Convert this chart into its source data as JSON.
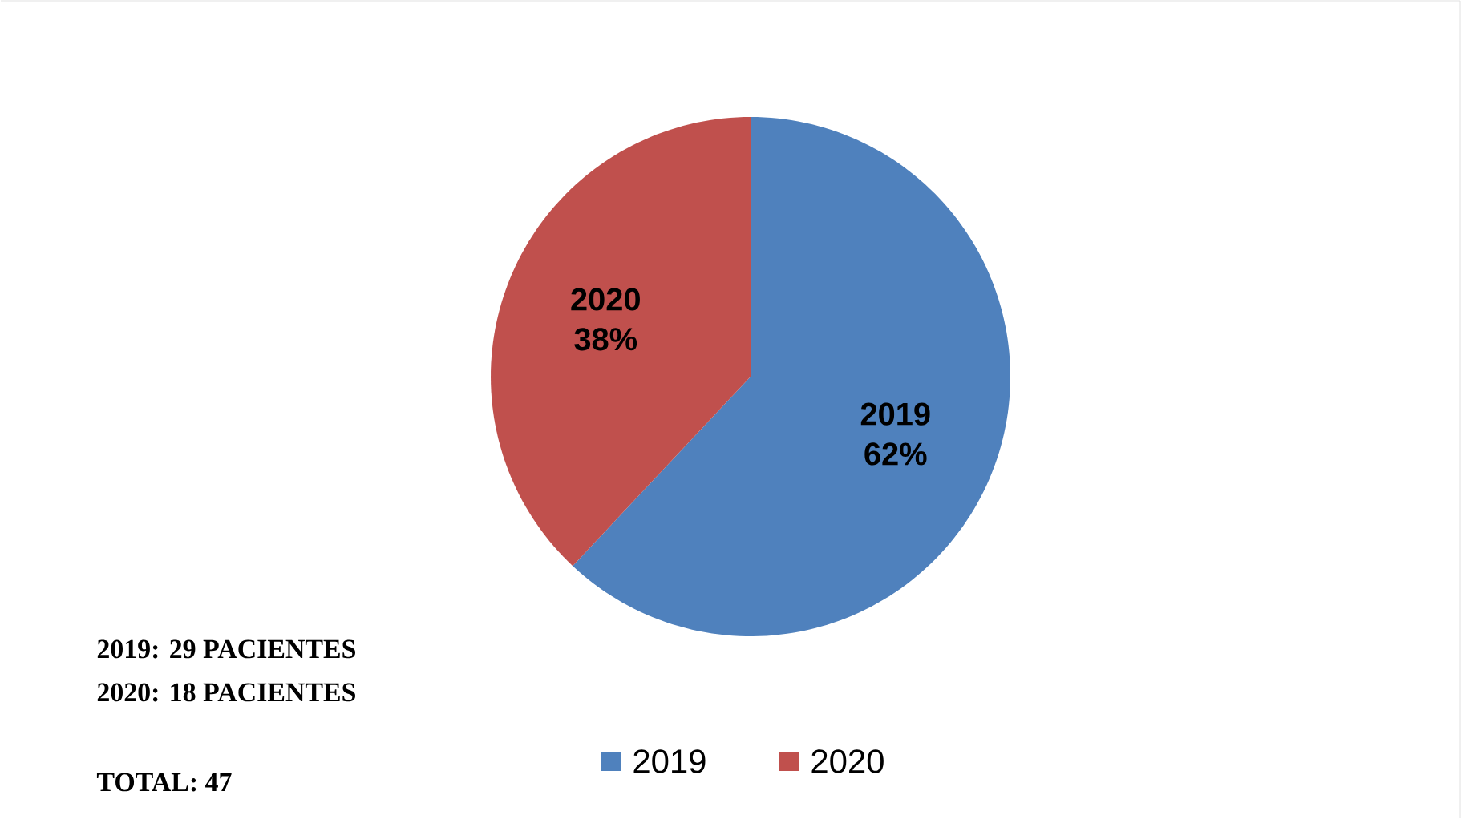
{
  "chart_data": {
    "type": "pie",
    "categories": [
      "2019",
      "2020"
    ],
    "values": [
      62,
      38
    ],
    "value_labels": [
      "62%",
      "38%"
    ],
    "colors": [
      "#4f81bd",
      "#c0504d"
    ],
    "legend": "bottom",
    "annotations": [
      "2019: 29 PACIENTES",
      "2020: 18 PACIENTES",
      "TOTAL: 47"
    ]
  }
}
